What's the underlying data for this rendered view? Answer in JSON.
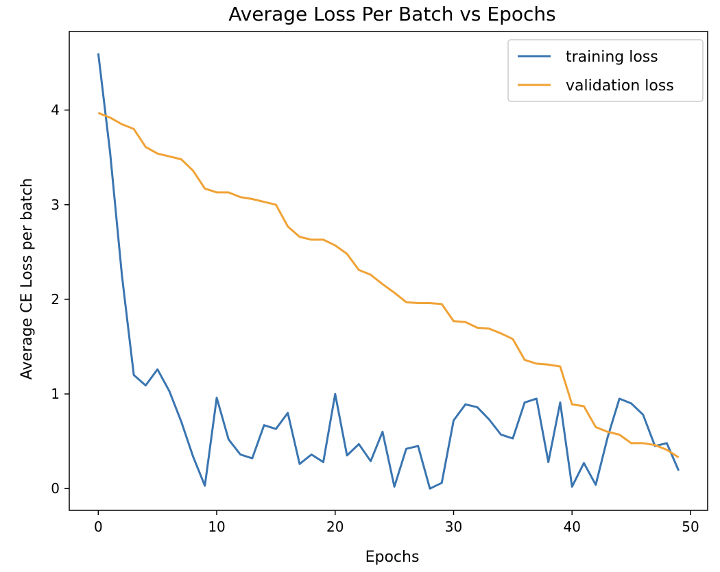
{
  "chart_data": {
    "type": "line",
    "title": "Average Loss Per Batch vs Epochs",
    "xlabel": "Epochs",
    "ylabel": "Average CE Loss per batch",
    "xlim": [
      -2.45,
      51.45
    ],
    "ylim": [
      -0.23,
      4.83
    ],
    "xticks": [
      0,
      10,
      20,
      30,
      40,
      50
    ],
    "yticks": [
      0,
      1,
      2,
      3,
      4
    ],
    "grid": false,
    "legend_position": "top-right",
    "x": [
      0,
      1,
      2,
      3,
      4,
      5,
      6,
      7,
      8,
      9,
      10,
      11,
      12,
      13,
      14,
      15,
      16,
      17,
      18,
      19,
      20,
      21,
      22,
      23,
      24,
      25,
      26,
      27,
      28,
      29,
      30,
      31,
      32,
      33,
      34,
      35,
      36,
      37,
      38,
      39,
      40,
      41,
      42,
      43,
      44,
      45,
      46,
      47,
      48,
      49
    ],
    "series": [
      {
        "name": "training loss",
        "color": "#3a75b0",
        "values": [
          4.6,
          3.55,
          2.25,
          1.2,
          1.09,
          1.26,
          1.03,
          0.71,
          0.34,
          0.03,
          0.96,
          0.52,
          0.36,
          0.32,
          0.67,
          0.63,
          0.8,
          0.26,
          0.36,
          0.28,
          1.0,
          0.35,
          0.47,
          0.29,
          0.6,
          0.02,
          0.42,
          0.45,
          0.0,
          0.06,
          0.72,
          0.89,
          0.86,
          0.73,
          0.57,
          0.53,
          0.91,
          0.95,
          0.28,
          0.91,
          0.02,
          0.27,
          0.04,
          0.54,
          0.95,
          0.9,
          0.78,
          0.45,
          0.48,
          0.19
        ]
      },
      {
        "name": "validation loss",
        "color": "#f0a235",
        "values": [
          3.97,
          3.92,
          3.85,
          3.8,
          3.61,
          3.54,
          3.51,
          3.48,
          3.36,
          3.17,
          3.13,
          3.13,
          3.08,
          3.06,
          3.03,
          3.0,
          2.77,
          2.66,
          2.63,
          2.63,
          2.57,
          2.48,
          2.31,
          2.26,
          2.16,
          2.07,
          1.97,
          1.96,
          1.96,
          1.95,
          1.77,
          1.76,
          1.7,
          1.69,
          1.64,
          1.58,
          1.36,
          1.32,
          1.31,
          1.29,
          0.89,
          0.87,
          0.65,
          0.6,
          0.57,
          0.48,
          0.48,
          0.46,
          0.41,
          0.33
        ]
      }
    ]
  }
}
